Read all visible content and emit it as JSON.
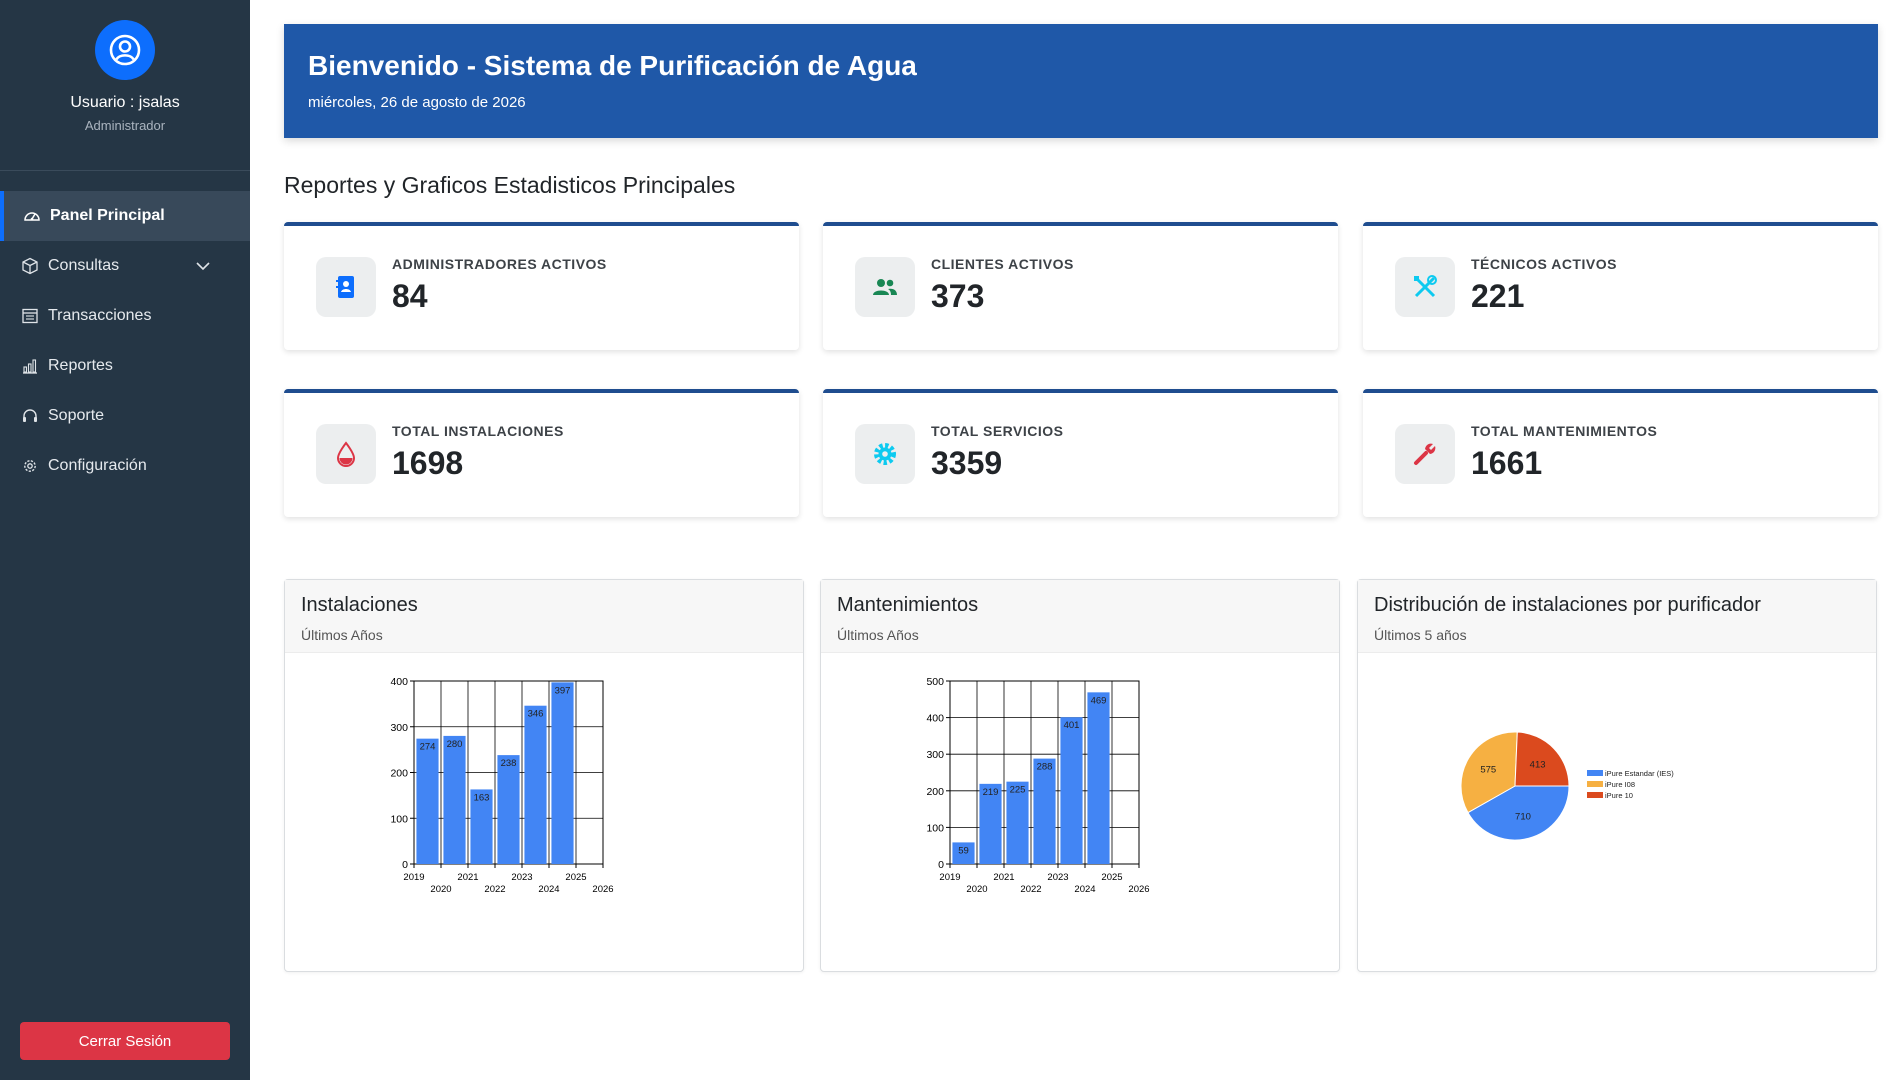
{
  "sidebar": {
    "user_label": "Usuario : jsalas",
    "role": "Administrador",
    "items": [
      {
        "label": "Panel Principal",
        "icon": "gauge-icon"
      },
      {
        "label": "Consultas",
        "icon": "box-icon"
      },
      {
        "label": "Transacciones",
        "icon": "table-icon"
      },
      {
        "label": "Reportes",
        "icon": "bar-chart-icon"
      },
      {
        "label": "Soporte",
        "icon": "headset-icon"
      },
      {
        "label": "Configuración",
        "icon": "gear-icon"
      }
    ],
    "logout": "Cerrar Sesión"
  },
  "banner": {
    "title": "Bienvenido - Sistema de Purificación de Agua",
    "date": "miércoles, 26 de agosto de 2026"
  },
  "section_title": "Reportes y Graficos Estadisticos Principales",
  "stats": [
    {
      "label": "ADMINISTRADORES ACTIVOS",
      "value": "84",
      "icon": "contact-book-icon",
      "color": "#0d6efd"
    },
    {
      "label": "CLIENTES ACTIVOS",
      "value": "373",
      "icon": "users-icon",
      "color": "#198754"
    },
    {
      "label": "TÉCNICOS ACTIVOS",
      "value": "221",
      "icon": "tools-icon",
      "color": "#0dcaf0"
    },
    {
      "label": "TOTAL INSTALACIONES",
      "value": "1698",
      "icon": "water-drop-icon",
      "color": "#dc3545"
    },
    {
      "label": "TOTAL SERVICIOS",
      "value": "3359",
      "icon": "gear-icon",
      "color": "#0dcaf0"
    },
    {
      "label": "TOTAL MANTENIMIENTOS",
      "value": "1661",
      "icon": "wrench-icon",
      "color": "#dc3545"
    }
  ],
  "charts": [
    {
      "title": "Instalaciones",
      "subtitle": "Últimos Años"
    },
    {
      "title": "Mantenimientos",
      "subtitle": "Últimos Años"
    },
    {
      "title": "Distribución de instalaciones por purificador",
      "subtitle": "Últimos 5 años"
    }
  ],
  "chart_data": [
    {
      "type": "bar",
      "categories": [
        "2020",
        "2021",
        "2022",
        "2023",
        "2024",
        "2025"
      ],
      "values": [
        274,
        280,
        163,
        238,
        346,
        397
      ],
      "xticks": [
        "2019",
        "2020",
        "2021",
        "2022",
        "2023",
        "2024",
        "2025",
        "2026"
      ],
      "yticks": [
        "0",
        "100",
        "200",
        "300",
        "400"
      ],
      "ylim": [
        0,
        400
      ],
      "color": "#4285f4",
      "grid": true
    },
    {
      "type": "bar",
      "categories": [
        "2020",
        "2021",
        "2022",
        "2023",
        "2024",
        "2025"
      ],
      "values": [
        59,
        219,
        225,
        288,
        401,
        469
      ],
      "xticks": [
        "2019",
        "2020",
        "2021",
        "2022",
        "2023",
        "2024",
        "2025",
        "2026"
      ],
      "yticks": [
        "0",
        "100",
        "200",
        "300",
        "400",
        "500"
      ],
      "ylim": [
        0,
        500
      ],
      "color": "#4285f4",
      "grid": true
    },
    {
      "type": "pie",
      "series": [
        {
          "name": "iPure Estandar (IES)",
          "value": 710,
          "color": "#4285f4"
        },
        {
          "name": "iPure I08",
          "value": 575,
          "color": "#f6b042"
        },
        {
          "name": "iPure 10",
          "value": 413,
          "color": "#db4a1e"
        }
      ],
      "legend": "right"
    }
  ],
  "colors": {
    "sidebar": "#253645",
    "banner": "#1f58a8",
    "accent": "#0d6efd",
    "logout": "#dc3545"
  }
}
